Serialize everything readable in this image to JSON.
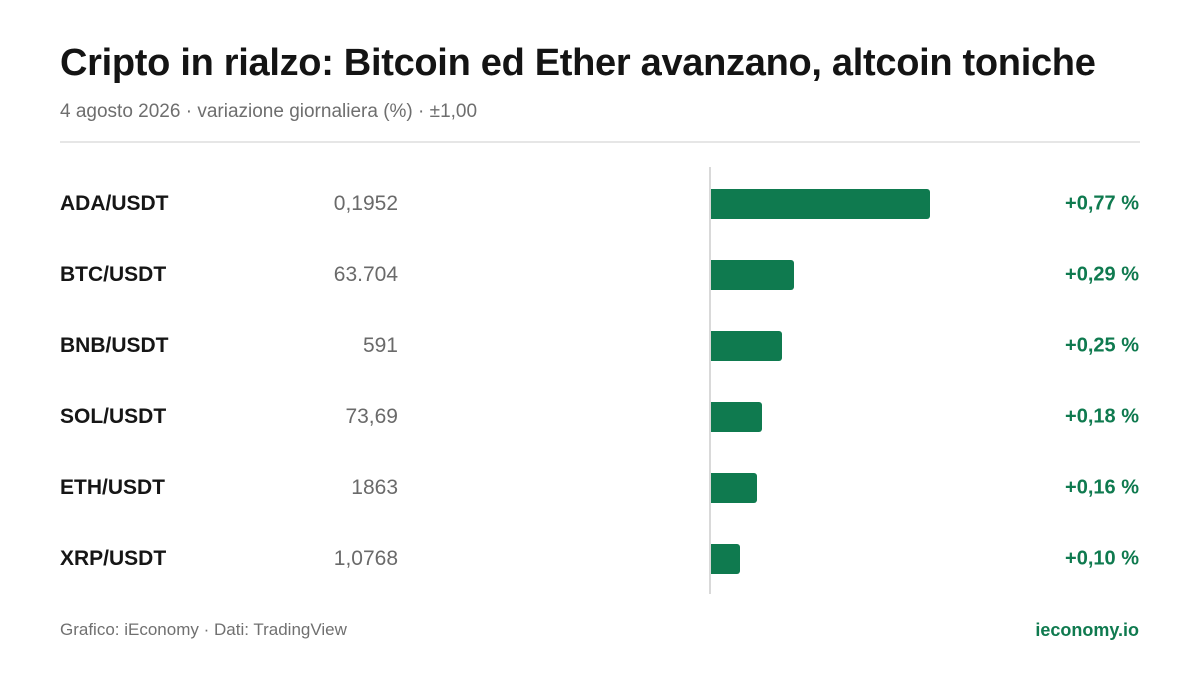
{
  "title": "Cripto in rialzo: Bitcoin ed Ether avanzano, altcoin toniche",
  "subtitle": "4 agosto 2026 · variazione giornaliera (%) · ±1,00",
  "colors": {
    "positive": "#0f7a4f",
    "accent_text": "#0f7a4f"
  },
  "footer": {
    "credit": "Grafico: iEconomy · Dati: TradingView",
    "brand": "ieconomy.io"
  },
  "chart_data": {
    "type": "bar",
    "orientation": "horizontal",
    "categories": [
      "ADA/USDT",
      "BTC/USDT",
      "BNB/USDT",
      "SOL/USDT",
      "ETH/USDT",
      "XRP/USDT"
    ],
    "prices": [
      "0,1952",
      "63.704",
      "591",
      "73,69",
      "1863",
      "1,0768"
    ],
    "values": [
      0.77,
      0.29,
      0.25,
      0.18,
      0.16,
      0.1
    ],
    "value_labels": [
      "+0,77 %",
      "+0,29 %",
      "+0,25 %",
      "+0,18 %",
      "+0,16 %",
      "+0,10 %"
    ],
    "xlim": [
      -1,
      1
    ],
    "title": "Cripto in rialzo: Bitcoin ed Ether avanzano, altcoin toniche"
  }
}
